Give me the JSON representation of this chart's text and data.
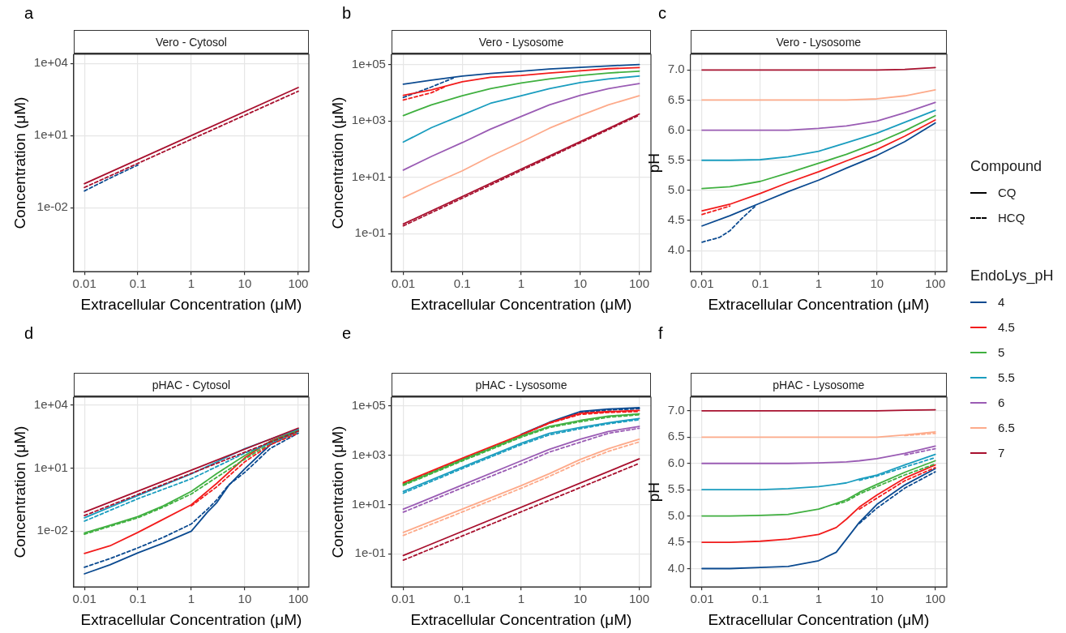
{
  "chart_data": [
    {
      "type": "line",
      "title": "Vero - Cytosol",
      "annotations": [
        "a"
      ],
      "xlabel": "Extracellular Concentration (μM)",
      "ylabel": "Concentration (μM)",
      "log": "xy",
      "grid": true,
      "marker": "none",
      "xlim": [
        0.0063,
        158
      ],
      "xticks": [
        0.01,
        0.1,
        1,
        10,
        100
      ],
      "ylim": [
        2.2e-05,
        24000
      ],
      "yticks": [
        {
          "value": 0.01,
          "label": "1e-02"
        },
        {
          "value": 10,
          "label": "1e+01"
        },
        {
          "value": 10000,
          "label": "1e+04"
        }
      ],
      "x": [
        0.01,
        100
      ],
      "series": [
        {
          "color": "#0b4a90",
          "line_style": "dashed",
          "x": [
            0.01,
            0.03,
            0.1
          ],
          "values": [
            0.05,
            0.17,
            0.6
          ]
        },
        {
          "color": "#a8102e",
          "line_style": "solid",
          "values": [
            0.1,
            1000
          ]
        },
        {
          "color": "#a8102e",
          "line_style": "dashed",
          "values": [
            0.07,
            700
          ]
        }
      ]
    },
    {
      "type": "line",
      "title": "Vero - Lysosome",
      "annotations": [
        "b"
      ],
      "xlabel": "Extracellular Concentration (μM)",
      "ylabel": "Concentration (μM)",
      "log": "xy",
      "grid": true,
      "marker": "none",
      "xlim": [
        0.0063,
        158
      ],
      "xticks": [
        0.01,
        0.1,
        1,
        10,
        100
      ],
      "ylim": [
        0.0045,
        230000
      ],
      "yticks": [
        {
          "value": 0.1,
          "label": "1e-01"
        },
        {
          "value": 10,
          "label": "1e+01"
        },
        {
          "value": 1000,
          "label": "1e+03"
        },
        {
          "value": 100000,
          "label": "1e+05"
        }
      ],
      "x": [
        0.01,
        0.03,
        0.1,
        0.3,
        1,
        3,
        10,
        30,
        100
      ],
      "series": [
        {
          "color": "#0b4a90",
          "line_style": "solid",
          "values": [
            20000,
            28000,
            39000,
            48000,
            58000,
            69000,
            79000,
            89000,
            100000
          ]
        },
        {
          "color": "#0b4a90",
          "line_style": "dashed",
          "x": [
            0.01,
            0.03,
            0.07
          ],
          "values": [
            6800,
            16000,
            33000
          ]
        },
        {
          "color": "#f21c1c",
          "line_style": "solid",
          "values": [
            8100,
            12600,
            24500,
            35000,
            41000,
            50000,
            60000,
            71000,
            78000
          ]
        },
        {
          "color": "#f21c1c",
          "line_style": "dashed",
          "x": [
            0.01,
            0.03,
            0.05
          ],
          "values": [
            5500,
            10000,
            16000
          ]
        },
        {
          "color": "#40b040",
          "line_style": "solid",
          "values": [
            1550,
            3700,
            7800,
            14000,
            22000,
            31000,
            41000,
            50000,
            58000
          ]
        },
        {
          "color": "#1a9dbf",
          "line_style": "solid",
          "values": [
            178,
            575,
            1620,
            4200,
            7800,
            14000,
            23000,
            31000,
            39000
          ]
        },
        {
          "color": "#9a5cb4",
          "line_style": "solid",
          "values": [
            18,
            55,
            170,
            510,
            1450,
            3700,
            8100,
            14000,
            21000
          ]
        },
        {
          "color": "#fdaa8a",
          "line_style": "solid",
          "values": [
            1.9,
            5.6,
            17,
            55,
            178,
            550,
            1550,
            3700,
            7800
          ]
        },
        {
          "color": "#a8102e",
          "line_style": "solid",
          "x": [
            0.01,
            100
          ],
          "values": [
            0.22,
            1750
          ]
        },
        {
          "color": "#a8102e",
          "line_style": "dashed",
          "x": [
            0.01,
            100
          ],
          "values": [
            0.19,
            1600
          ]
        }
      ]
    },
    {
      "type": "line",
      "title": "Vero - Lysosome",
      "annotations": [
        "c"
      ],
      "xlabel": "Extracellular Concentration (μM)",
      "ylabel": "pH",
      "log": "x",
      "grid": true,
      "marker": "none",
      "legend": "right",
      "legend_title": "Compound",
      "xlim": [
        0.0063,
        158
      ],
      "xticks": [
        0.01,
        0.1,
        1,
        10,
        100
      ],
      "ylim": [
        3.65,
        7.26
      ],
      "yticks": [
        {
          "value": 4,
          "label": "4.0"
        },
        {
          "value": 4.5,
          "label": "4.5"
        },
        {
          "value": 5,
          "label": "5.0"
        },
        {
          "value": 5.5,
          "label": "5.5"
        },
        {
          "value": 6,
          "label": "6.0"
        },
        {
          "value": 6.5,
          "label": "6.5"
        },
        {
          "value": 7,
          "label": "7.0"
        }
      ],
      "x": [
        0.01,
        0.03,
        0.1,
        0.3,
        1,
        3,
        10,
        30,
        100
      ],
      "series": [
        {
          "color": "#0b4a90",
          "line_style": "solid",
          "values": [
            4.41,
            4.58,
            4.79,
            4.98,
            5.17,
            5.37,
            5.58,
            5.81,
            6.12
          ]
        },
        {
          "color": "#0b4a90",
          "line_style": "dashed",
          "x": [
            0.01,
            0.02,
            0.03,
            0.05,
            0.08
          ],
          "values": [
            4.14,
            4.22,
            4.33,
            4.55,
            4.73
          ]
        },
        {
          "color": "#f21c1c",
          "line_style": "solid",
          "values": [
            4.66,
            4.77,
            4.95,
            5.13,
            5.31,
            5.49,
            5.68,
            5.9,
            6.17
          ]
        },
        {
          "color": "#f21c1c",
          "line_style": "dashed",
          "x": [
            0.01,
            0.03
          ],
          "values": [
            4.6,
            4.74
          ]
        },
        {
          "color": "#40b040",
          "line_style": "solid",
          "values": [
            5.03,
            5.06,
            5.15,
            5.29,
            5.45,
            5.6,
            5.79,
            5.99,
            6.24
          ]
        },
        {
          "color": "#1a9dbf",
          "line_style": "solid",
          "values": [
            5.5,
            5.5,
            5.51,
            5.56,
            5.65,
            5.79,
            5.95,
            6.13,
            6.33
          ]
        },
        {
          "color": "#9a5cb4",
          "line_style": "solid",
          "values": [
            6,
            6,
            6,
            6,
            6.03,
            6.07,
            6.15,
            6.29,
            6.46
          ]
        },
        {
          "color": "#fdaa8a",
          "line_style": "solid",
          "values": [
            6.5,
            6.5,
            6.5,
            6.5,
            6.5,
            6.5,
            6.52,
            6.57,
            6.67
          ]
        },
        {
          "color": "#a8102e",
          "line_style": "solid",
          "values": [
            7,
            7,
            7,
            7,
            7,
            7,
            7,
            7.01,
            7.04
          ]
        },
        {
          "name": "CQ",
          "color": "#000000",
          "line_style": "solid",
          "values": [
            null,
            null,
            null,
            null,
            null,
            null,
            null,
            null,
            null
          ]
        },
        {
          "name": "HCQ",
          "color": "#000000",
          "line_style": "dashed",
          "values": [
            null,
            null,
            null,
            null,
            null,
            null,
            null,
            null,
            null
          ]
        }
      ]
    },
    {
      "type": "line",
      "title": "pHAC - Cytosol",
      "annotations": [
        "d"
      ],
      "xlabel": "Extracellular Concentration (μM)",
      "ylabel": "Concentration (μM)",
      "log": "xy",
      "grid": true,
      "marker": "none",
      "xlim": [
        0.0063,
        158
      ],
      "xticks": [
        0.01,
        0.1,
        1,
        10,
        100
      ],
      "ylim": [
        2.2e-05,
        24000
      ],
      "yticks": [
        {
          "value": 0.01,
          "label": "1e-02"
        },
        {
          "value": 10,
          "label": "1e+01"
        },
        {
          "value": 10000,
          "label": "1e+04"
        }
      ],
      "x": [
        0.01,
        0.03,
        0.1,
        0.3,
        1,
        3,
        10,
        30,
        100
      ],
      "series": [
        {
          "color": "#0b4a90",
          "line_style": "solid",
          "x": [
            0.01,
            0.03,
            0.1,
            0.3,
            1,
            2,
            3,
            5,
            10,
            30,
            100
          ],
          "values": [
            9.3e-05,
            0.00025,
            0.00093,
            0.0027,
            0.01,
            0.08,
            0.23,
            1.5,
            9.3,
            130,
            600
          ]
        },
        {
          "color": "#0b4a90",
          "line_style": "dashed",
          "x": [
            0.01,
            0.03,
            0.1,
            0.3,
            1,
            2,
            3,
            5,
            10,
            30,
            100
          ],
          "values": [
            0.00019,
            0.00049,
            0.0016,
            0.0051,
            0.022,
            0.11,
            0.31,
            1.6,
            6.3,
            87,
            460
          ]
        },
        {
          "color": "#f21c1c",
          "line_style": "solid",
          "values": [
            0.00087,
            0.002,
            0.0087,
            0.037,
            0.18,
            1.9,
            31,
            195,
            680
          ]
        },
        {
          "color": "#40b040",
          "line_style": "solid",
          "values": [
            0.0081,
            0.019,
            0.049,
            0.16,
            0.78,
            5.5,
            40,
            180,
            650
          ]
        },
        {
          "color": "#40b040",
          "line_style": "dashed",
          "values": [
            0.0071,
            0.017,
            0.043,
            0.14,
            0.59,
            3.7,
            27,
            148,
            550
          ]
        },
        {
          "color": "#1a9dbf",
          "line_style": "solid",
          "x": [
            0.01,
            0.1,
            1,
            10,
            100
          ],
          "values": [
            0.043,
            0.5,
            5.3,
            85,
            720
          ]
        },
        {
          "color": "#1a9dbf",
          "line_style": "dashed",
          "x": [
            0.01,
            0.1,
            1,
            10,
            100
          ],
          "values": [
            0.03,
            0.35,
            3.1,
            52,
            490
          ]
        },
        {
          "color": "#a8102e",
          "line_style": "solid",
          "x": [
            0.01,
            100
          ],
          "values": [
            0.08,
            800
          ]
        },
        {
          "color": "#a8102e",
          "line_style": "dashed",
          "x": [
            0.01,
            100
          ],
          "values": [
            0.055,
            580
          ]
        },
        {
          "color": "#f21c1c",
          "line_style": "dashed",
          "x": [
            1,
            3,
            10,
            30,
            100
          ],
          "values": [
            0.16,
            1.3,
            20,
            130,
            470
          ]
        }
      ]
    },
    {
      "type": "line",
      "title": "pHAC - Lysosome",
      "annotations": [
        "e"
      ],
      "xlabel": "Extracellular Concentration (μM)",
      "ylabel": "Concentration (μM)",
      "log": "xy",
      "grid": true,
      "marker": "none",
      "xlim": [
        0.0063,
        158
      ],
      "xticks": [
        0.01,
        0.1,
        1,
        10,
        100
      ],
      "ylim": [
        0.0045,
        230000
      ],
      "yticks": [
        {
          "value": 0.1,
          "label": "1e-01"
        },
        {
          "value": 10,
          "label": "1e+01"
        },
        {
          "value": 1000,
          "label": "1e+03"
        },
        {
          "value": 100000,
          "label": "1e+05"
        }
      ],
      "x": [
        0.01,
        0.1,
        1,
        3,
        10,
        30,
        100
      ],
      "series": [
        {
          "color": "#0b4a90",
          "line_style": "solid",
          "x": [
            1,
            3,
            10,
            30,
            100
          ],
          "values": [
            7200,
            22000,
            60000,
            76000,
            86000
          ]
        },
        {
          "color": "#0b4a90",
          "line_style": "dashed",
          "x": [
            1,
            3,
            10,
            30,
            100
          ],
          "values": [
            6800,
            21000,
            55000,
            69000,
            78000
          ]
        },
        {
          "color": "#f21c1c",
          "line_style": "solid",
          "values": [
            78,
            760,
            6900,
            21000,
            51000,
            60000,
            66000
          ]
        },
        {
          "color": "#f21c1c",
          "line_style": "dashed",
          "values": [
            71,
            700,
            6600,
            20000,
            46000,
            55000,
            60000
          ]
        },
        {
          "color": "#40b040",
          "line_style": "solid",
          "values": [
            66,
            650,
            6000,
            15000,
            26000,
            39000,
            48000
          ]
        },
        {
          "color": "#40b040",
          "line_style": "dashed",
          "values": [
            60,
            590,
            5400,
            13500,
            23000,
            35000,
            44000
          ]
        },
        {
          "color": "#1a9dbf",
          "line_style": "solid",
          "values": [
            34,
            330,
            3100,
            7800,
            13500,
            21000,
            31000
          ]
        },
        {
          "color": "#1a9dbf",
          "line_style": "dashed",
          "values": [
            29,
            290,
            2700,
            6800,
            12000,
            19000,
            28000
          ]
        },
        {
          "color": "#9a5cb4",
          "line_style": "solid",
          "values": [
            6.5,
            62,
            600,
            1750,
            4500,
            9300,
            15000
          ]
        },
        {
          "color": "#9a5cb4",
          "line_style": "dashed",
          "values": [
            4.9,
            48,
            440,
            1350,
            3400,
            7800,
            12600
          ]
        },
        {
          "color": "#fdaa8a",
          "line_style": "solid",
          "values": [
            0.74,
            6.5,
            59,
            180,
            680,
            1860,
            4500
          ]
        },
        {
          "color": "#fdaa8a",
          "line_style": "dashed",
          "values": [
            0.56,
            5,
            46,
            140,
            520,
            1450,
            3500
          ]
        },
        {
          "color": "#a8102e",
          "line_style": "solid",
          "x": [
            0.01,
            100
          ],
          "values": [
            0.085,
            720
          ]
        },
        {
          "color": "#a8102e",
          "line_style": "dashed",
          "x": [
            0.01,
            100
          ],
          "values": [
            0.055,
            470
          ]
        }
      ]
    },
    {
      "type": "line",
      "title": "pHAC - Lysosome",
      "annotations": [
        "f"
      ],
      "xlabel": "Extracellular Concentration (μM)",
      "ylabel": "pH",
      "log": "x",
      "grid": true,
      "marker": "none",
      "legend": "right",
      "legend_title": "EndoLys_pH",
      "xlim": [
        0.0063,
        158
      ],
      "xticks": [
        0.01,
        0.1,
        1,
        10,
        100
      ],
      "ylim": [
        3.65,
        7.26
      ],
      "yticks": [
        {
          "value": 4,
          "label": "4.0"
        },
        {
          "value": 4.5,
          "label": "4.5"
        },
        {
          "value": 5,
          "label": "5.0"
        },
        {
          "value": 5.5,
          "label": "5.5"
        },
        {
          "value": 6,
          "label": "6.0"
        },
        {
          "value": 6.5,
          "label": "6.5"
        },
        {
          "value": 7,
          "label": "7.0"
        }
      ],
      "x": [
        0.01,
        0.03,
        0.1,
        0.3,
        1,
        2,
        3,
        5,
        10,
        30,
        100
      ],
      "series": [
        {
          "name": "4",
          "color": "#0b4a90",
          "line_style": "solid",
          "values": [
            4,
            4,
            4.02,
            4.04,
            4.15,
            4.31,
            4.56,
            4.88,
            5.22,
            5.59,
            5.9
          ]
        },
        {
          "color": "#0b4a90",
          "line_style": "dashed",
          "x": [
            5,
            10,
            30,
            100
          ],
          "values": [
            4.86,
            5.15,
            5.53,
            5.84
          ]
        },
        {
          "name": "4.5",
          "color": "#f21c1c",
          "line_style": "solid",
          "values": [
            4.5,
            4.5,
            4.52,
            4.56,
            4.65,
            4.78,
            4.94,
            5.17,
            5.4,
            5.72,
            5.97
          ]
        },
        {
          "color": "#f21c1c",
          "line_style": "dashed",
          "x": [
            5,
            10,
            30,
            100
          ],
          "values": [
            5.13,
            5.34,
            5.67,
            5.92
          ]
        },
        {
          "name": "5",
          "color": "#40b040",
          "line_style": "solid",
          "values": [
            5,
            5,
            5.01,
            5.03,
            5.13,
            5.24,
            5.31,
            5.45,
            5.6,
            5.83,
            6.05
          ]
        },
        {
          "color": "#40b040",
          "line_style": "dashed",
          "x": [
            2,
            3,
            5,
            10,
            30,
            100
          ],
          "values": [
            5.22,
            5.28,
            5.42,
            5.56,
            5.78,
            5.99
          ]
        },
        {
          "name": "5.5",
          "color": "#1a9dbf",
          "line_style": "solid",
          "values": [
            5.5,
            5.5,
            5.5,
            5.52,
            5.56,
            5.6,
            5.63,
            5.7,
            5.78,
            5.97,
            6.17
          ]
        },
        {
          "color": "#1a9dbf",
          "line_style": "dashed",
          "x": [
            5,
            10,
            30,
            100
          ],
          "values": [
            5.68,
            5.76,
            5.93,
            6.11
          ]
        },
        {
          "name": "6",
          "color": "#9a5cb4",
          "line_style": "solid",
          "values": [
            6,
            6,
            6,
            6,
            6.01,
            6.02,
            6.03,
            6.05,
            6.09,
            6.19,
            6.33
          ]
        },
        {
          "color": "#9a5cb4",
          "line_style": "dashed",
          "x": [
            30,
            100
          ],
          "values": [
            6.16,
            6.28
          ]
        },
        {
          "name": "6.5",
          "color": "#fdaa8a",
          "line_style": "solid",
          "x": [
            0.01,
            10,
            30,
            100
          ],
          "values": [
            6.5,
            6.5,
            6.54,
            6.6
          ]
        },
        {
          "color": "#fdaa8a",
          "line_style": "dashed",
          "x": [
            30,
            100
          ],
          "values": [
            6.53,
            6.57
          ]
        },
        {
          "name": "7",
          "color": "#a8102e",
          "line_style": "solid",
          "x": [
            0.01,
            10,
            30,
            100
          ],
          "values": [
            7,
            7,
            7.01,
            7.02
          ]
        }
      ]
    }
  ]
}
